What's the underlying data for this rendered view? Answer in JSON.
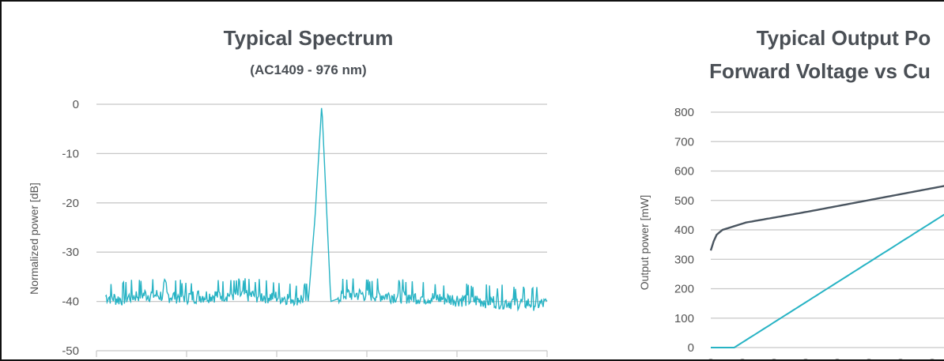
{
  "charts": [
    {
      "title": "Typical Spectrum",
      "subtitle": "(AC1409 - 976 nm)",
      "ylabel": "Normalized power [dB]",
      "y_ticks": [
        "0",
        "-10",
        "-20",
        "-30",
        "-40",
        "-50"
      ],
      "colors": {
        "series": "#27b3c4",
        "grid": "#c8c8c8"
      }
    },
    {
      "title_line1": "Typical Output Po",
      "title_line2": "Forward Voltage vs Cu",
      "ylabel": "Output power [mW]",
      "y_ticks": [
        "800",
        "700",
        "600",
        "500",
        "400",
        "300",
        "200",
        "100",
        "0"
      ],
      "colors": {
        "power": "#27b3c4",
        "voltage": "#4a5560",
        "grid": "#c8c8c8"
      }
    }
  ],
  "chart_data": [
    {
      "type": "line",
      "title": "Typical Spectrum",
      "subtitle": "(AC1409 - 976 nm)",
      "xlabel": "",
      "ylabel": "Normalized power [dB]",
      "ylim": [
        -50,
        0
      ],
      "grid": true,
      "series": [
        {
          "x": [
            0,
            0.05,
            0.1,
            0.2,
            0.3,
            0.4,
            0.47,
            0.485,
            0.5,
            0.51,
            0.52,
            0.55,
            0.6,
            0.7,
            0.8,
            0.9,
            1.0
          ],
          "values": [
            -39,
            -40,
            -39,
            -39.5,
            -39,
            -39.5,
            -40,
            -23,
            0,
            -20,
            -40,
            -39,
            -39,
            -39.5,
            -40,
            -40.5,
            -41
          ]
        }
      ]
    },
    {
      "type": "line",
      "title": "Typical Output Po Forward Voltage vs Cu",
      "xlabel": "",
      "ylabel": "Output power [mW]",
      "ylim": [
        0,
        800
      ],
      "grid": true,
      "series": [
        {
          "x": [
            0,
            0.1,
            1.0
          ],
          "values": [
            0,
            0,
            455
          ]
        },
        {
          "x": [
            0,
            0.02,
            0.05,
            0.15,
            0.4,
            0.7,
            1.0
          ],
          "values": [
            330,
            380,
            400,
            425,
            460,
            505,
            550
          ]
        }
      ]
    }
  ]
}
